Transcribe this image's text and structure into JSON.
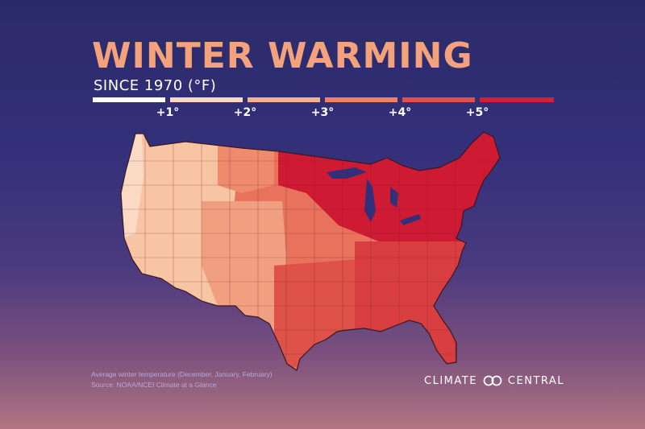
{
  "title": "WINTER WARMING",
  "subtitle": "SINCE 1970 (°F)",
  "legend": {
    "ticks": [
      "+1°",
      "+2°",
      "+3°",
      "+4°",
      "+5°"
    ],
    "colors": [
      "#ffffff",
      "#f9d7c4",
      "#f5b192",
      "#ee8263",
      "#e24e4b",
      "#d41e3a"
    ]
  },
  "map": {
    "subject": "contiguous United States climate divisions",
    "fill_by_region": {
      "west_coast_and_great_basin": "#f7c4a4",
      "southwest_and_rockies": "#f0a081",
      "great_plains": "#e9725c",
      "south_central": "#df5249",
      "southeast": "#d83e40",
      "upper_midwest_and_northeast": "#cf1a34"
    }
  },
  "footnote": {
    "line1": "Average winter temperature (December, January, February)",
    "line2": "Source: NOAA/NCEI Climate at a Glance"
  },
  "brand": {
    "left": "CLIMATE",
    "right": "CENTRAL"
  }
}
